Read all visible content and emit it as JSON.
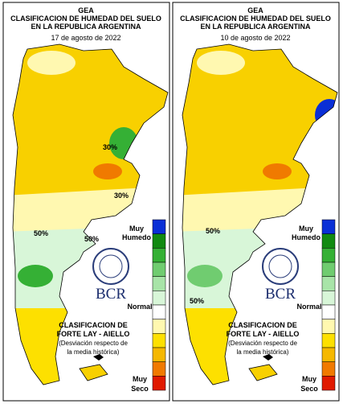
{
  "panels": [
    {
      "title": [
        "GEA",
        "CLASIFICACION DE HUMEDAD DEL SUELO",
        "EN LA REPUBLICA ARGENTINA"
      ],
      "date": "17 de agosto de 2022",
      "map_labels": [
        {
          "text": "30%",
          "x": 133,
          "y": 183
        },
        {
          "text": "30%",
          "x": 147,
          "y": 243
        },
        {
          "text": "50%",
          "x": 110,
          "y": 297
        },
        {
          "text": "50%",
          "x": 47,
          "y": 290
        }
      ]
    },
    {
      "title": [
        "GEA",
        "CLASIFICACION DE HUMEDAD DEL SUELO",
        "EN LA REPUBLICA ARGENTINA"
      ],
      "date": "10 de agosto de 2022",
      "map_labels": [
        {
          "text": "50%",
          "x": 50,
          "y": 287
        },
        {
          "text": "50%",
          "x": 30,
          "y": 374
        }
      ]
    }
  ],
  "legend": {
    "top": [
      "Muy",
      "Humedo"
    ],
    "middle": "Normal",
    "bottom": [
      "Muy",
      "Seco"
    ],
    "colors": [
      "#0a2fd6",
      "#118a11",
      "#35b035",
      "#70cc70",
      "#a8e4a8",
      "#d8f6d8",
      "#ffffff",
      "#fff8b0",
      "#fde000",
      "#f5b800",
      "#f07a00",
      "#e01a00"
    ]
  },
  "logo": "BCR",
  "note": [
    "CLASIFICACION DE",
    "FORTE LAY - AIELLO",
    "(Desviación respecto de",
    "la media histórica)"
  ]
}
